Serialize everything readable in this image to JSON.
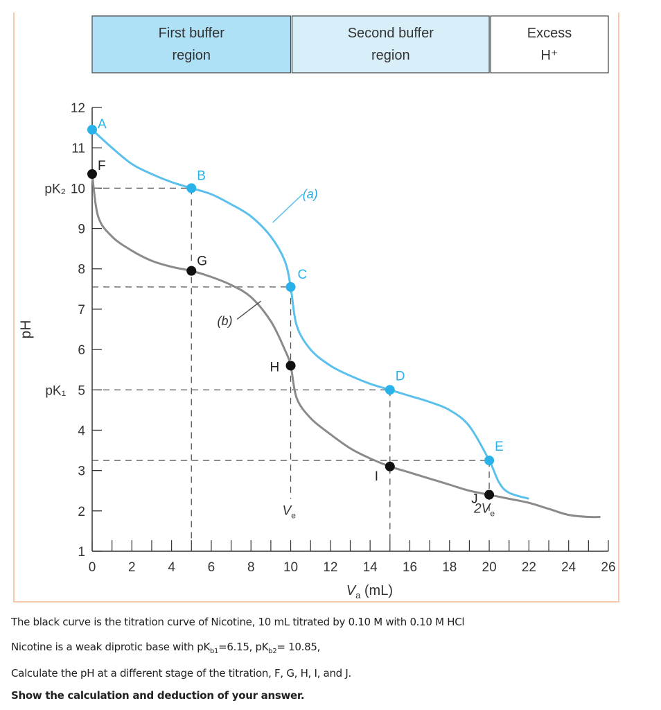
{
  "chart_data": {
    "type": "line",
    "xlabel": "V",
    "xlabel_sub": "a",
    "xlabel_unit": "(mL)",
    "ylabel": "pH",
    "xlim": [
      0,
      26
    ],
    "ylim": [
      1,
      12
    ],
    "xticks": [
      0,
      2,
      4,
      6,
      8,
      10,
      12,
      14,
      16,
      18,
      20,
      22,
      24,
      26
    ],
    "yticks": [
      1,
      2,
      3,
      4,
      5,
      6,
      7,
      8,
      9,
      10,
      11,
      12
    ],
    "ytick_prefix": {
      "10": "pK₂",
      "5": "pK₁"
    },
    "regions": [
      {
        "line1": "First buffer",
        "line2": "region",
        "from": 0,
        "to": 10,
        "color": "#aee0f6"
      },
      {
        "line1": "Second buffer",
        "line2": "region",
        "from": 10,
        "to": 20,
        "color": "#d8eff9"
      },
      {
        "line1": "Excess",
        "line2": "H⁺",
        "from": 20,
        "to": 26,
        "color": "#ffffff"
      }
    ],
    "series": [
      {
        "name": "(a)",
        "color": "#5bc0ec",
        "x": [
          0,
          1,
          2,
          3,
          4,
          5,
          6,
          7,
          8,
          9,
          9.7,
          10,
          10.3,
          11,
          12,
          13,
          14,
          15,
          16,
          17,
          18,
          19,
          20,
          20.5,
          21,
          22
        ],
        "y": [
          11.45,
          11.0,
          10.6,
          10.35,
          10.15,
          10.0,
          9.85,
          9.6,
          9.3,
          8.8,
          8.2,
          7.55,
          6.6,
          6.0,
          5.6,
          5.35,
          5.15,
          5.0,
          4.85,
          4.7,
          4.5,
          4.1,
          3.25,
          2.7,
          2.45,
          2.3
        ],
        "points": [
          {
            "label": "A",
            "x": 0,
            "y": 11.45
          },
          {
            "label": "B",
            "x": 5,
            "y": 10
          },
          {
            "label": "C",
            "x": 10,
            "y": 7.55
          },
          {
            "label": "D",
            "x": 15,
            "y": 5
          },
          {
            "label": "E",
            "x": 20,
            "y": 3.25
          }
        ]
      },
      {
        "name": "(b)",
        "color": "#8a8a8a",
        "x": [
          0,
          0.3,
          1,
          2,
          3,
          4,
          5,
          6,
          7,
          8,
          9,
          9.7,
          10,
          10.3,
          11,
          12,
          13,
          14,
          15,
          16,
          17,
          18,
          19,
          20,
          21,
          22,
          23,
          24,
          25,
          25.6
        ],
        "y": [
          10.35,
          9.3,
          8.8,
          8.45,
          8.2,
          8.05,
          7.95,
          7.8,
          7.6,
          7.3,
          6.7,
          6.0,
          5.6,
          4.8,
          4.3,
          3.9,
          3.55,
          3.3,
          3.1,
          2.95,
          2.8,
          2.65,
          2.5,
          2.4,
          2.3,
          2.2,
          2.05,
          1.9,
          1.85,
          1.85
        ],
        "points": [
          {
            "label": "F",
            "x": 0,
            "y": 10.35
          },
          {
            "label": "G",
            "x": 5,
            "y": 7.95
          },
          {
            "label": "H",
            "x": 10,
            "y": 5.6
          },
          {
            "label": "I",
            "x": 15,
            "y": 3.1
          },
          {
            "label": "J",
            "x": 20,
            "y": 2.4
          }
        ]
      }
    ],
    "annotations": [
      {
        "text": "V",
        "sub": "e",
        "x": 10
      },
      {
        "text": "2V",
        "sub": "e",
        "x": 20
      }
    ],
    "dashed_levels": [
      10,
      7.55,
      5,
      3.25
    ]
  },
  "question": {
    "line1": "The black curve is the titration curve of Nicotine, 10 mL titrated by 0.10 M with 0.10 M HCl",
    "line2_pre": "Nicotine is a weak diprotic base with pK",
    "line2_sub1": "b1",
    "line2_mid": "=6.15, pK",
    "line2_sub2": "b2",
    "line2_post": "= 10.85,",
    "line3": "Calculate the pH at a different stage of the titration, F, G, H, I, and J.",
    "line4": "Show the calculation and deduction of your answer."
  }
}
